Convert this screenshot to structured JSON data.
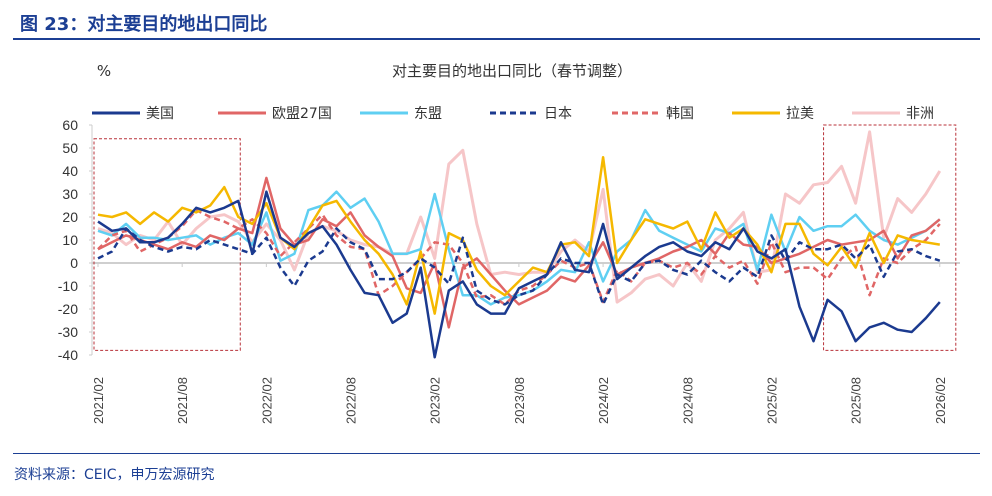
{
  "figure_title": "图 23：对主要目的地出口同比",
  "source": "资料来源：CEIC，申万宏源研究",
  "chart_data": {
    "type": "line",
    "title": "对主要目的地出口同比（春节调整）",
    "ylabel": "%",
    "ylim": [
      -40,
      60
    ],
    "yticks": [
      60,
      50,
      40,
      30,
      20,
      10,
      0,
      -10,
      -20,
      -30,
      -40
    ],
    "x_start": "2021/02",
    "x_end": "2026/02",
    "x_frequency": "monthly",
    "xtick_labels": [
      "2021/02",
      "2021/08",
      "2022/02",
      "2022/08",
      "2023/02",
      "2023/08",
      "2024/02",
      "2024/08",
      "2025/02",
      "2025/08",
      "2026/02"
    ],
    "legend_position": "top",
    "highlight_boxes": [
      {
        "x_from": "2021/02",
        "x_to": "2021/11",
        "y_from": -38,
        "y_to": 54
      },
      {
        "x_from": "2025/06",
        "x_to": "2026/02",
        "y_from": -38,
        "y_to": 60
      }
    ],
    "series": [
      {
        "name": "美国",
        "color": "#1b3a8f",
        "dash": false,
        "values": [
          18,
          14,
          15,
          9,
          9,
          11,
          17,
          24,
          22,
          24,
          27,
          4,
          31,
          11,
          7,
          13,
          16,
          8,
          -3,
          -13,
          -14,
          -26,
          -22,
          -2,
          -41,
          -12,
          -8,
          -18,
          -22,
          -22,
          -11,
          -8,
          -5,
          9,
          -3,
          -4,
          17,
          -7,
          -2,
          3,
          7,
          9,
          5,
          3,
          9,
          6,
          15,
          5,
          2,
          6,
          -19,
          -34,
          -16,
          -21,
          -34,
          -28,
          -26,
          -29,
          -30,
          -24,
          -17
        ]
      },
      {
        "name": "欧盟27国",
        "color": "#e06666",
        "dash": false,
        "values": [
          6,
          9,
          12,
          10,
          8,
          6,
          9,
          7,
          12,
          10,
          15,
          13,
          37,
          15,
          8,
          10,
          19,
          16,
          22,
          12,
          7,
          3,
          -11,
          -13,
          0,
          -28,
          -2,
          2,
          -5,
          -12,
          -18,
          -15,
          -12,
          -6,
          -8,
          -1,
          9,
          -5,
          -2,
          0,
          2,
          5,
          7,
          10,
          4,
          13,
          8,
          7,
          0,
          2,
          4,
          7,
          10,
          8,
          9,
          10,
          14,
          2,
          12,
          14,
          19
        ]
      },
      {
        "name": "东盟",
        "color": "#5fcff2",
        "dash": false,
        "values": [
          14,
          12,
          17,
          11,
          11,
          10,
          11,
          12,
          8,
          11,
          13,
          8,
          22,
          1,
          4,
          23,
          25,
          31,
          24,
          28,
          18,
          4,
          4,
          6,
          30,
          6,
          -14,
          -14,
          -18,
          -15,
          -14,
          -12,
          -8,
          -3,
          -4,
          9,
          -8,
          5,
          10,
          23,
          14,
          11,
          8,
          5,
          15,
          13,
          17,
          -3,
          21,
          5,
          20,
          14,
          16,
          16,
          21,
          14,
          10,
          8,
          11,
          14,
          19
        ]
      },
      {
        "name": "日本",
        "color": "#1b3a8f",
        "dash": true,
        "values": [
          2,
          5,
          15,
          10,
          7,
          5,
          7,
          6,
          10,
          8,
          6,
          4,
          11,
          -2,
          -10,
          1,
          5,
          15,
          9,
          6,
          -7,
          -7,
          -4,
          2,
          -2,
          -9,
          11,
          -12,
          -16,
          -18,
          -14,
          -12,
          -5,
          2,
          0,
          0,
          -18,
          -5,
          -8,
          0,
          1,
          -3,
          -5,
          1,
          -4,
          -8,
          -2,
          -6,
          12,
          1,
          9,
          6,
          6,
          8,
          2,
          8,
          -6,
          5,
          6,
          3,
          1
        ]
      },
      {
        "name": "韩国",
        "color": "#e06666",
        "dash": true,
        "values": [
          6,
          12,
          14,
          5,
          8,
          11,
          16,
          23,
          20,
          18,
          15,
          19,
          13,
          3,
          9,
          15,
          21,
          12,
          7,
          6,
          -14,
          -10,
          -4,
          2,
          9,
          8,
          0,
          -15,
          -14,
          -18,
          -12,
          -10,
          -5,
          1,
          -2,
          0,
          -17,
          -3,
          -8,
          0,
          1,
          -2,
          0,
          -5,
          3,
          -2,
          1,
          -9,
          9,
          -4,
          -2,
          -2,
          -7,
          2,
          7,
          -14,
          2,
          0,
          6,
          10,
          17
        ]
      },
      {
        "name": "拉美",
        "color": "#f5b800",
        "dash": false,
        "values": [
          21,
          20,
          22,
          17,
          22,
          18,
          24,
          22,
          25,
          33,
          20,
          17,
          26,
          11,
          6,
          15,
          25,
          27,
          18,
          10,
          4,
          -5,
          -18,
          5,
          -22,
          13,
          10,
          -3,
          -10,
          -14,
          -8,
          -2,
          -4,
          8,
          9,
          3,
          46,
          0,
          10,
          19,
          17,
          15,
          18,
          6,
          22,
          11,
          15,
          8,
          -4,
          17,
          17,
          4,
          -1,
          7,
          -2,
          13,
          0,
          12,
          10,
          9,
          8
        ]
      },
      {
        "name": "非洲",
        "color": "#f6c6c8",
        "dash": false,
        "values": [
          15,
          13,
          8,
          12,
          10,
          18,
          8,
          15,
          20,
          21,
          18,
          9,
          17,
          10,
          -3,
          13,
          16,
          14,
          10,
          8,
          7,
          4,
          4,
          20,
          2,
          43,
          49,
          17,
          -5,
          -4,
          -5,
          -4,
          -4,
          5,
          10,
          5,
          32,
          -17,
          -13,
          -7,
          -5,
          -10,
          0,
          -8,
          10,
          15,
          22,
          -4,
          -3,
          30,
          26,
          34,
          35,
          42,
          26,
          57,
          11,
          28,
          22,
          30,
          40
        ]
      }
    ]
  }
}
